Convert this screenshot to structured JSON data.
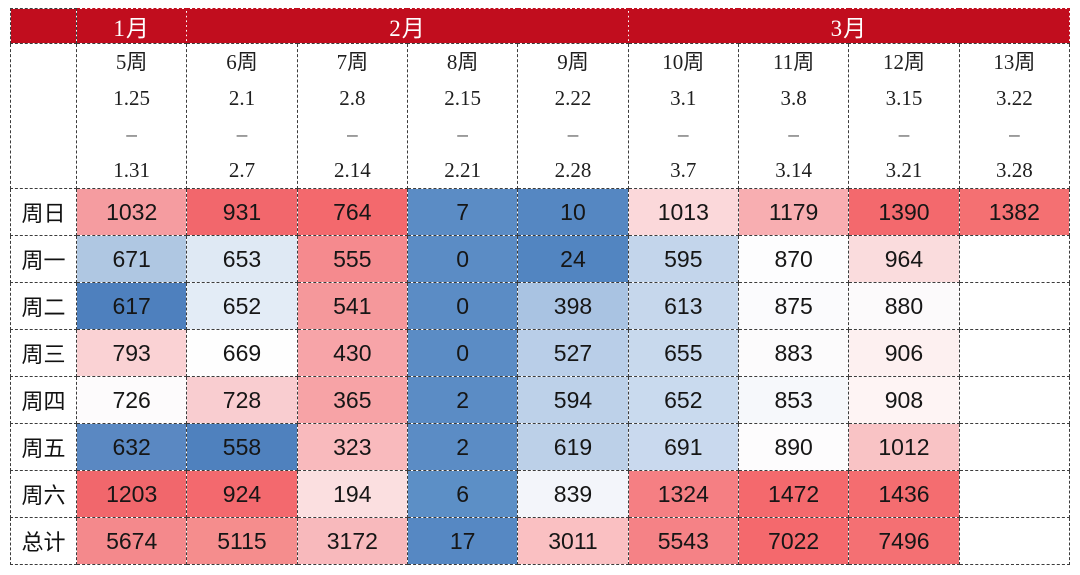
{
  "chart_data": {
    "type": "heatmap",
    "title": "",
    "colorscale_note": "3-color scale: red = high, white = mid, blue = low",
    "accent_red": "#C10D1E",
    "month_groups": [
      {
        "label": "1月",
        "cols": 1
      },
      {
        "label": "2月",
        "cols": 4
      },
      {
        "label": "3月",
        "cols": 4
      }
    ],
    "weeks": [
      {
        "week": "5周",
        "start": "1.25",
        "dash": "–",
        "end": "1.31"
      },
      {
        "week": "6周",
        "start": "2.1",
        "dash": "–",
        "end": "2.7"
      },
      {
        "week": "7周",
        "start": "2.8",
        "dash": "–",
        "end": "2.14"
      },
      {
        "week": "8周",
        "start": "2.15",
        "dash": "–",
        "end": "2.21"
      },
      {
        "week": "9周",
        "start": "2.22",
        "dash": "–",
        "end": "2.28"
      },
      {
        "week": "10周",
        "start": "3.1",
        "dash": "–",
        "end": "3.7"
      },
      {
        "week": "11周",
        "start": "3.8",
        "dash": "–",
        "end": "3.14"
      },
      {
        "week": "12周",
        "start": "3.15",
        "dash": "–",
        "end": "3.21"
      },
      {
        "week": "13周",
        "start": "3.22",
        "dash": "–",
        "end": "3.28"
      }
    ],
    "row_labels": [
      "周日",
      "周一",
      "周二",
      "周三",
      "周四",
      "周五",
      "周六",
      "总计"
    ],
    "values": [
      [
        1032,
        931,
        764,
        7,
        10,
        1013,
        1179,
        1390,
        1382
      ],
      [
        671,
        653,
        555,
        0,
        24,
        595,
        870,
        964,
        null
      ],
      [
        617,
        652,
        541,
        0,
        398,
        613,
        875,
        880,
        null
      ],
      [
        793,
        669,
        430,
        0,
        527,
        655,
        883,
        906,
        null
      ],
      [
        726,
        728,
        365,
        2,
        594,
        652,
        853,
        908,
        null
      ],
      [
        632,
        558,
        323,
        2,
        619,
        691,
        890,
        1012,
        null
      ],
      [
        1203,
        924,
        194,
        6,
        839,
        1324,
        1472,
        1436,
        null
      ],
      [
        5674,
        5115,
        3172,
        17,
        3011,
        5543,
        7022,
        7496,
        null
      ]
    ],
    "cell_colors": [
      [
        "#F59CA0",
        "#F2676C",
        "#F3696D",
        "#5B8CC5",
        "#5587C2",
        "#FBD8DA",
        "#F8AEB1",
        "#F3696D",
        "#F47072"
      ],
      [
        "#AFC7E2",
        "#DFE9F4",
        "#F58A8E",
        "#5B8CC5",
        "#5285C1",
        "#C3D5EB",
        "#FDFDFE",
        "#FADCDD",
        "#FFFFFF"
      ],
      [
        "#4E80BE",
        "#E3ECF6",
        "#F5989B",
        "#5B8CC5",
        "#A9C3E2",
        "#C6D7EC",
        "#FBFBFD",
        "#FCFAFB",
        "#FFFFFF"
      ],
      [
        "#FAD2D4",
        "#FEFEFE",
        "#F7A4A8",
        "#5B8CC5",
        "#B9CEE8",
        "#C8D9ED",
        "#FCFBFC",
        "#FDF0F0",
        "#FFFFFF"
      ],
      [
        "#FDFBFC",
        "#F9CDD0",
        "#F7A3A6",
        "#5B8CC5",
        "#BDD1E9",
        "#C9DAEE",
        "#F6F8FB",
        "#FEF4F4",
        "#FFFFFF"
      ],
      [
        "#5A88C2",
        "#4F81BE",
        "#F9BABD",
        "#5B8CC5",
        "#BCD0E8",
        "#C9D9EE",
        "#FDFCFD",
        "#F9C3C5",
        "#FFFFFF"
      ],
      [
        "#F1676C",
        "#F3696E",
        "#FBDFE0",
        "#5C8FC6",
        "#F3F5FA",
        "#F57F83",
        "#F4696D",
        "#F46D70",
        "#FFFFFF"
      ],
      [
        "#F4898C",
        "#F58D8D",
        "#F8B9BC",
        "#5688C3",
        "#FAC0C2",
        "#F58286",
        "#F4696D",
        "#F47073",
        "#FFFFFF"
      ]
    ]
  }
}
